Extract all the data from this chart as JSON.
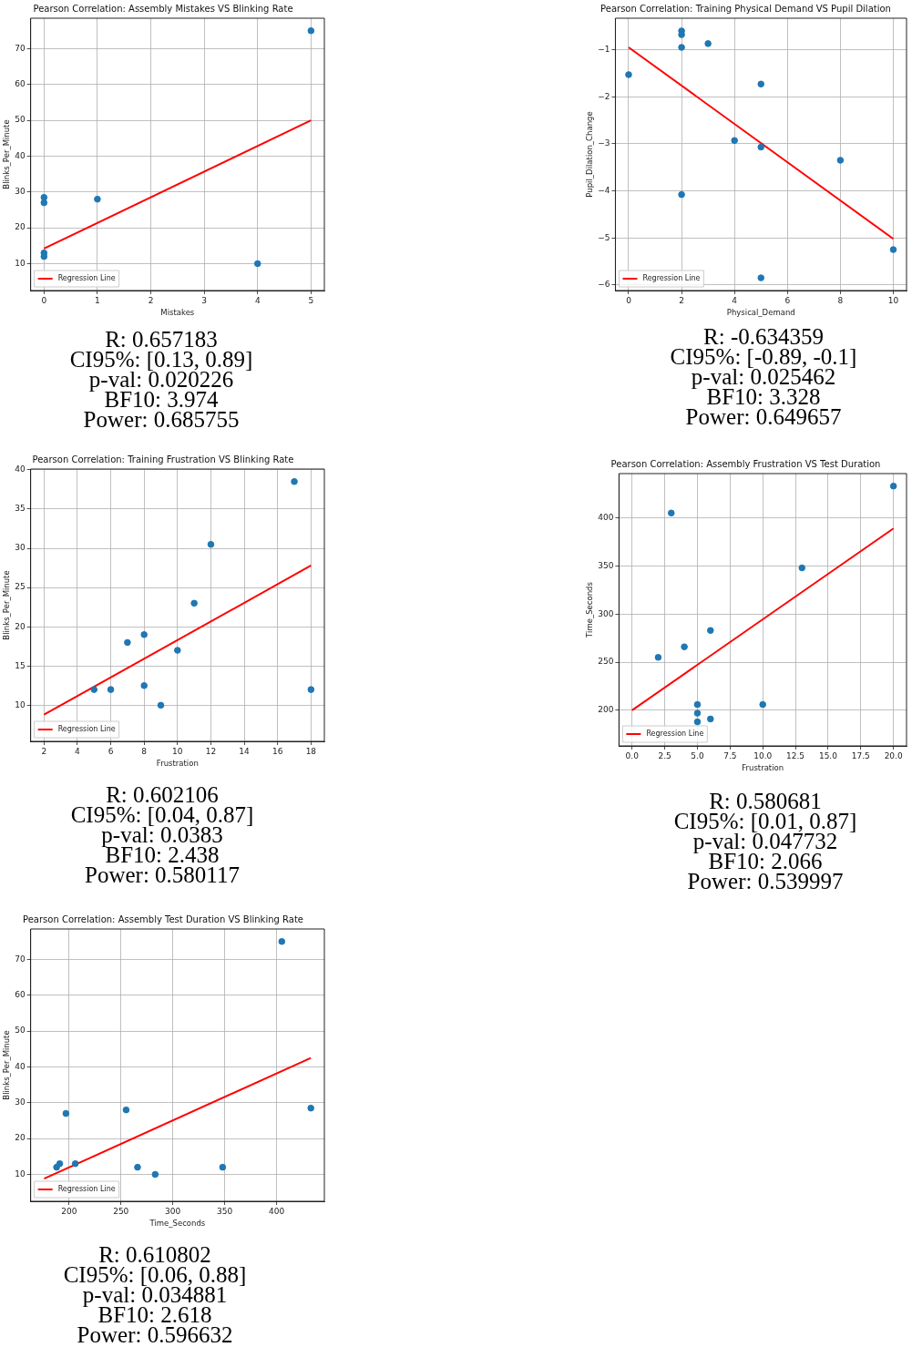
{
  "chart_data": [
    {
      "type": "scatter",
      "title": "Pearson Correlation: Assembly Mistakes VS Blinking Rate",
      "xlabel": "Mistakes",
      "ylabel": "Blinks_Per_Minute",
      "xlim": [
        -0.25,
        5.25
      ],
      "ylim": [
        2.5,
        78.5
      ],
      "xticks": [
        0,
        1,
        2,
        3,
        4,
        5
      ],
      "yticks": [
        10,
        20,
        30,
        40,
        50,
        60,
        70
      ],
      "grid": true,
      "legend": "bottom left",
      "series": [
        {
          "color": "#1f77b4",
          "marker": "circle",
          "x": [
            0,
            0,
            0,
            0,
            1,
            4,
            5
          ],
          "values": [
            28.5,
            27,
            13,
            12,
            28,
            10,
            75
          ]
        },
        {
          "name": "Regression Line",
          "type": "line",
          "marker": "none",
          "color": "#ff0000",
          "x": [
            0,
            5
          ],
          "values": [
            14.2,
            50
          ]
        }
      ],
      "annotations": [
        "R: 0.657183",
        "CI95%: [0.13, 0.89]",
        "p-val: 0.020226",
        "BF10: 3.974",
        "Power: 0.685755"
      ]
    },
    {
      "type": "scatter",
      "title": "Pearson Correlation: Training Physical Demand VS Pupil Dilation",
      "xlabel": "Physical_Demand",
      "ylabel": "Pupil_Dilation_Change",
      "xlim": [
        -0.5,
        10.5
      ],
      "ylim": [
        -6.12,
        -0.33
      ],
      "xticks": [
        0,
        2,
        4,
        6,
        8,
        10
      ],
      "yticks": [
        {
          "value": -6,
          "label": "−6"
        },
        {
          "value": -5,
          "label": "−5"
        },
        {
          "value": -4,
          "label": "−4"
        },
        {
          "value": -3,
          "label": "−3"
        },
        {
          "value": -2,
          "label": "−2"
        },
        {
          "value": -1,
          "label": "−1"
        }
      ],
      "grid": true,
      "legend": "bottom left",
      "series": [
        {
          "color": "#1f77b4",
          "marker": "circle",
          "x": [
            0,
            2,
            2,
            2,
            2,
            3,
            4,
            5,
            5,
            5,
            8,
            10
          ],
          "values": [
            -1.53,
            -0.6,
            -0.68,
            -0.95,
            -4.08,
            -0.87,
            -2.93,
            -1.73,
            -3.07,
            -5.85,
            -3.35,
            -5.25
          ]
        },
        {
          "name": "Regression Line",
          "type": "line",
          "marker": "none",
          "color": "#ff0000",
          "x": [
            0,
            10
          ],
          "values": [
            -0.95,
            -5.02
          ]
        }
      ],
      "annotations": [
        "R: -0.634359",
        "CI95%: [-0.89, -0.1]",
        "p-val: 0.025462",
        "BF10: 3.328",
        "Power: 0.649657"
      ]
    },
    {
      "type": "scatter",
      "title": "Pearson Correlation: Training Frustration VS Blinking Rate",
      "xlabel": "Frustration",
      "ylabel": "Blinks_Per_Minute",
      "xlim": [
        1.2,
        18.8
      ],
      "ylim": [
        5.4,
        40.1
      ],
      "xticks": [
        2,
        4,
        6,
        8,
        10,
        12,
        14,
        16,
        18
      ],
      "yticks": [
        10,
        15,
        20,
        25,
        30,
        35,
        40
      ],
      "grid": true,
      "legend": "bottom left",
      "series": [
        {
          "color": "#1f77b4",
          "marker": "circle",
          "x": [
            5,
            6,
            7,
            8,
            8,
            9,
            10,
            11,
            12,
            17,
            18
          ],
          "values": [
            12,
            12,
            18,
            19,
            12.5,
            10,
            17,
            23,
            30.5,
            38.5,
            12
          ]
        },
        {
          "name": "Regression Line",
          "type": "line",
          "marker": "none",
          "color": "#ff0000",
          "x": [
            2,
            18
          ],
          "values": [
            8.8,
            27.8
          ]
        }
      ],
      "annotations": [
        "R: 0.602106",
        "CI95%: [0.04, 0.87]",
        "p-val: 0.0383",
        "BF10: 2.438",
        "Power: 0.580117"
      ]
    },
    {
      "type": "scatter",
      "title": "Pearson Correlation: Assembly Frustration VS Test Duration",
      "xlabel": "Frustration",
      "ylabel": "Time_Seconds",
      "xlim": [
        -1,
        21
      ],
      "ylim": [
        163,
        446
      ],
      "xticks": [
        {
          "value": 0,
          "label": "0.0"
        },
        {
          "value": 2.5,
          "label": "2.5"
        },
        {
          "value": 5,
          "label": "5.0"
        },
        {
          "value": 7.5,
          "label": "7.5"
        },
        {
          "value": 10,
          "label": "10.0"
        },
        {
          "value": 12.5,
          "label": "12.5"
        },
        {
          "value": 15,
          "label": "15.0"
        },
        {
          "value": 17.5,
          "label": "17.5"
        },
        {
          "value": 20,
          "label": "20.0"
        }
      ],
      "yticks": [
        200,
        250,
        300,
        350,
        400
      ],
      "grid": true,
      "legend": "bottom left",
      "series": [
        {
          "color": "#1f77b4",
          "marker": "circle",
          "x": [
            2,
            3,
            4,
            5,
            5,
            5,
            6,
            6,
            10,
            13,
            20
          ],
          "values": [
            255,
            405,
            266,
            206,
            197,
            188,
            283,
            191,
            206,
            348,
            433
          ]
        },
        {
          "name": "Regression Line",
          "type": "line",
          "marker": "none",
          "color": "#ff0000",
          "x": [
            0,
            20
          ],
          "values": [
            200,
            389
          ]
        }
      ],
      "annotations": [
        "R: 0.580681",
        "CI95%: [0.01, 0.87]",
        "p-val: 0.047732",
        "BF10: 2.066",
        "Power: 0.539997"
      ]
    },
    {
      "type": "scatter",
      "title": "Pearson Correlation: Assembly Test Duration VS Blinking Rate",
      "xlabel": "Time_Seconds",
      "ylabel": "Blinks_Per_Minute",
      "xlim": [
        163,
        446
      ],
      "ylim": [
        2.5,
        78.5
      ],
      "xticks": [
        200,
        250,
        300,
        350,
        400
      ],
      "yticks": [
        10,
        20,
        30,
        40,
        50,
        60,
        70
      ],
      "grid": true,
      "legend": "bottom left",
      "series": [
        {
          "color": "#1f77b4",
          "marker": "circle",
          "x": [
            188,
            191,
            197,
            206,
            255,
            266,
            283,
            348,
            405,
            433
          ],
          "values": [
            12,
            13,
            27,
            13,
            28,
            12,
            10,
            12,
            75,
            28.5
          ]
        },
        {
          "name": "Regression Line",
          "type": "line",
          "marker": "none",
          "color": "#ff0000",
          "x": [
            176,
            433
          ],
          "values": [
            8.8,
            42.5
          ]
        }
      ],
      "annotations": [
        "R: 0.610802",
        "CI95%: [0.06, 0.88]",
        "p-val: 0.034881",
        "BF10: 2.618",
        "Power: 0.596632"
      ]
    }
  ]
}
